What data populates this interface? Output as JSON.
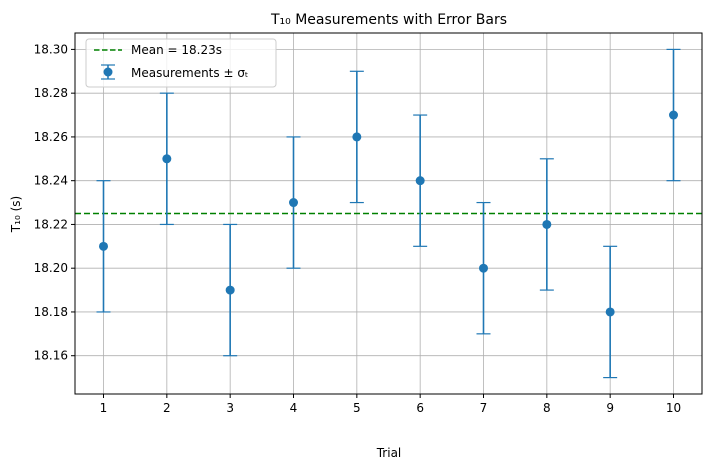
{
  "chart_data": {
    "type": "scatter",
    "title": "T₁₀ Measurements with Error Bars",
    "xlabel": "Trial",
    "ylabel": "T₁₀ (s)",
    "x": [
      1,
      2,
      3,
      4,
      5,
      6,
      7,
      8,
      9,
      10
    ],
    "xticks": [
      "1",
      "2",
      "3",
      "4",
      "5",
      "6",
      "7",
      "8",
      "9",
      "10"
    ],
    "xlim": [
      0.55,
      10.45
    ],
    "ylim": [
      18.1425,
      18.3075
    ],
    "yticks": [
      "18.16",
      "18.18",
      "18.20",
      "18.22",
      "18.24",
      "18.26",
      "18.28",
      "18.30"
    ],
    "ytick_values": [
      18.16,
      18.18,
      18.2,
      18.22,
      18.24,
      18.26,
      18.28,
      18.3
    ],
    "grid": true,
    "legend_position": "top-left",
    "series": [
      {
        "name": "Measurements ± σₜ",
        "values": [
          18.21,
          18.25,
          18.19,
          18.23,
          18.26,
          18.24,
          18.2,
          18.22,
          18.18,
          18.27
        ],
        "error": 0.03,
        "color": "#1f77b4"
      }
    ],
    "reference_lines": [
      {
        "name": "Mean = 18.23s",
        "y": 18.225,
        "color": "#008000",
        "style": "dashed"
      }
    ]
  }
}
